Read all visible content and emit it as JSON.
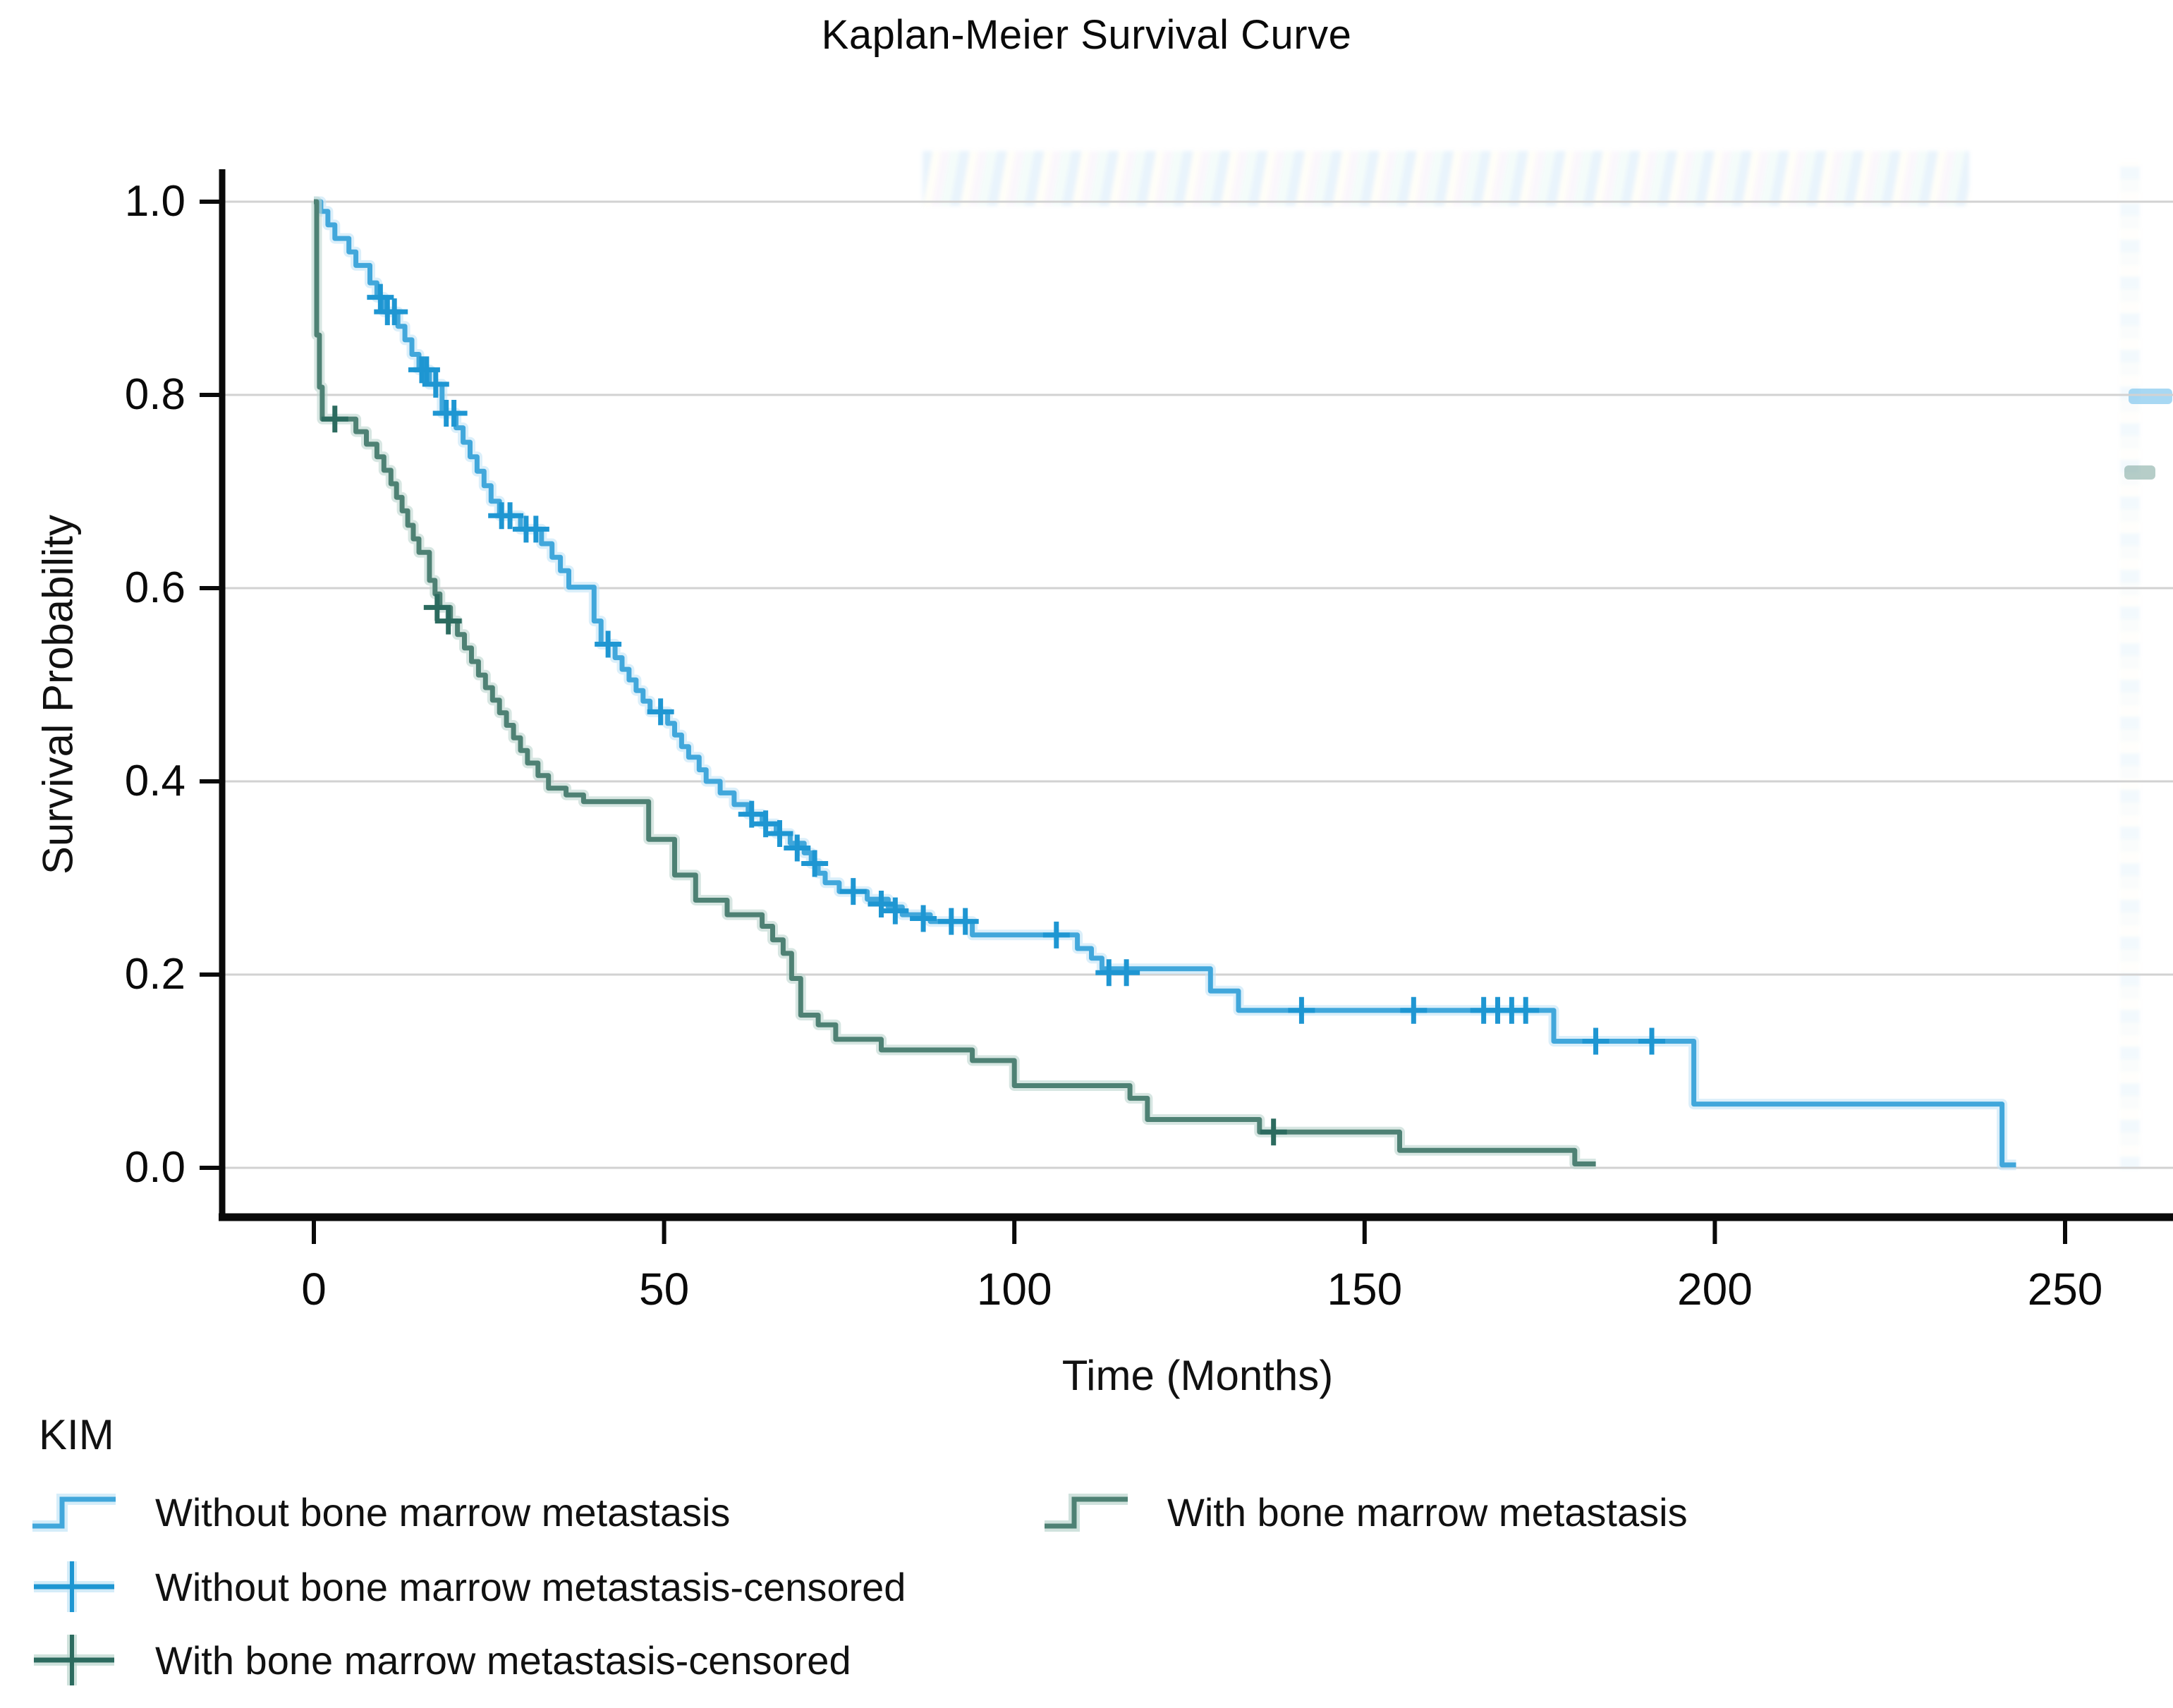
{
  "chart_data": {
    "type": "line",
    "subtype": "kaplan-meier-step",
    "title": "Kaplan-Meier Survival Curve",
    "xlabel": "Time (Months)",
    "ylabel": "Survival Probability",
    "x_ticks": [
      0,
      50,
      100,
      150,
      200,
      250
    ],
    "y_ticks": [
      0.0,
      0.2,
      0.4,
      0.6,
      0.8,
      1.0
    ],
    "xlim": [
      0,
      265
    ],
    "ylim": [
      0.0,
      1.05
    ],
    "grid": "horizontal",
    "legend_position": "bottom-left",
    "colors": {
      "grid": "#d2d2d2",
      "axis": "#0a0a0a",
      "text": "#0a0a0a",
      "series1_line": "#41a7db",
      "series1_halo": "#c3e5f6",
      "series1_censor": "#1e96d2",
      "series2_line": "#4e8174",
      "series2_halo": "#bcd6ce",
      "series2_censor": "#2c6b5f"
    },
    "series": [
      {
        "name": "Without bone marrow metastasis",
        "censored_name": "Without bone marrow metastasis-censored",
        "steps": [
          [
            0,
            1.0
          ],
          [
            1,
            0.99
          ],
          [
            2,
            0.976
          ],
          [
            3,
            0.962
          ],
          [
            5,
            0.948
          ],
          [
            6,
            0.934
          ],
          [
            8,
            0.916
          ],
          [
            9,
            0.901
          ],
          [
            10,
            0.886
          ],
          [
            12,
            0.871
          ],
          [
            13,
            0.857
          ],
          [
            14,
            0.842
          ],
          [
            15,
            0.826
          ],
          [
            16.5,
            0.811
          ],
          [
            18.3,
            0.781
          ],
          [
            20.3,
            0.766
          ],
          [
            21.3,
            0.751
          ],
          [
            22.3,
            0.736
          ],
          [
            23.3,
            0.721
          ],
          [
            24.3,
            0.706
          ],
          [
            25.3,
            0.69
          ],
          [
            26.5,
            0.675
          ],
          [
            29.5,
            0.661
          ],
          [
            32.5,
            0.646
          ],
          [
            34,
            0.632
          ],
          [
            35.2,
            0.618
          ],
          [
            36.4,
            0.601
          ],
          [
            40,
            0.566
          ],
          [
            41,
            0.542
          ],
          [
            43,
            0.528
          ],
          [
            44,
            0.516
          ],
          [
            45,
            0.505
          ],
          [
            46,
            0.494
          ],
          [
            47,
            0.483
          ],
          [
            48,
            0.472
          ],
          [
            50.5,
            0.46
          ],
          [
            51.5,
            0.448
          ],
          [
            52.5,
            0.436
          ],
          [
            53.5,
            0.425
          ],
          [
            55,
            0.412
          ],
          [
            56,
            0.4
          ],
          [
            58,
            0.388
          ],
          [
            60,
            0.376
          ],
          [
            62,
            0.366
          ],
          [
            64,
            0.356
          ],
          [
            66,
            0.346
          ],
          [
            68,
            0.336
          ],
          [
            70,
            0.326
          ],
          [
            71,
            0.315
          ],
          [
            72,
            0.305
          ],
          [
            73,
            0.295
          ],
          [
            75,
            0.286
          ],
          [
            79,
            0.278
          ],
          [
            82,
            0.27
          ],
          [
            84,
            0.262
          ],
          [
            88,
            0.255
          ],
          [
            94,
            0.241
          ],
          [
            109,
            0.227
          ],
          [
            111,
            0.217
          ],
          [
            112.5,
            0.206
          ],
          [
            128,
            0.183
          ],
          [
            132,
            0.163
          ],
          [
            177,
            0.131
          ],
          [
            197,
            0.066
          ],
          [
            241,
            0.003
          ],
          [
            243,
            0.003
          ]
        ],
        "censored": [
          [
            9.5,
            0.901
          ],
          [
            10.5,
            0.886
          ],
          [
            11.5,
            0.886
          ],
          [
            15.4,
            0.826
          ],
          [
            16.1,
            0.826
          ],
          [
            17.4,
            0.811
          ],
          [
            18.9,
            0.781
          ],
          [
            20,
            0.781
          ],
          [
            26.8,
            0.675
          ],
          [
            28,
            0.675
          ],
          [
            30.3,
            0.661
          ],
          [
            31.7,
            0.661
          ],
          [
            42,
            0.542
          ],
          [
            49.5,
            0.472
          ],
          [
            62.5,
            0.366
          ],
          [
            64.5,
            0.356
          ],
          [
            66.5,
            0.346
          ],
          [
            69,
            0.331
          ],
          [
            71.5,
            0.315
          ],
          [
            77,
            0.286
          ],
          [
            81,
            0.273
          ],
          [
            83,
            0.266
          ],
          [
            87,
            0.258
          ],
          [
            91,
            0.255
          ],
          [
            93,
            0.255
          ],
          [
            106,
            0.241
          ],
          [
            113.5,
            0.202
          ],
          [
            116,
            0.202
          ],
          [
            141,
            0.163
          ],
          [
            157,
            0.163
          ],
          [
            167,
            0.163
          ],
          [
            169,
            0.163
          ],
          [
            171,
            0.163
          ],
          [
            173,
            0.163
          ],
          [
            183,
            0.131
          ],
          [
            191,
            0.131
          ]
        ]
      },
      {
        "name": "With bone marrow metastasis",
        "censored_name": "With bone marrow metastasis-censored",
        "steps": [
          [
            0,
            1.0
          ],
          [
            0.4,
            0.862
          ],
          [
            0.8,
            0.808
          ],
          [
            1.2,
            0.775
          ],
          [
            6,
            0.762
          ],
          [
            7.5,
            0.749
          ],
          [
            9,
            0.736
          ],
          [
            10,
            0.722
          ],
          [
            11,
            0.708
          ],
          [
            11.8,
            0.694
          ],
          [
            12.6,
            0.68
          ],
          [
            13.4,
            0.665
          ],
          [
            14.2,
            0.651
          ],
          [
            15,
            0.637
          ],
          [
            16.5,
            0.608
          ],
          [
            17.3,
            0.594
          ],
          [
            18,
            0.58
          ],
          [
            19.5,
            0.566
          ],
          [
            20.5,
            0.552
          ],
          [
            21.5,
            0.538
          ],
          [
            22.5,
            0.524
          ],
          [
            23.5,
            0.51
          ],
          [
            24.5,
            0.497
          ],
          [
            25.5,
            0.484
          ],
          [
            26.5,
            0.471
          ],
          [
            27.5,
            0.458
          ],
          [
            28.5,
            0.445
          ],
          [
            29.5,
            0.432
          ],
          [
            30.5,
            0.419
          ],
          [
            32,
            0.406
          ],
          [
            33.5,
            0.393
          ],
          [
            36,
            0.386
          ],
          [
            38.5,
            0.379
          ],
          [
            47.8,
            0.34
          ],
          [
            51.5,
            0.303
          ],
          [
            54.5,
            0.277
          ],
          [
            59,
            0.262
          ],
          [
            64,
            0.25
          ],
          [
            65.5,
            0.236
          ],
          [
            67,
            0.222
          ],
          [
            68.2,
            0.196
          ],
          [
            69.5,
            0.158
          ],
          [
            72,
            0.148
          ],
          [
            74.5,
            0.133
          ],
          [
            81,
            0.122
          ],
          [
            94,
            0.111
          ],
          [
            100,
            0.085
          ],
          [
            116.5,
            0.072
          ],
          [
            119,
            0.05
          ],
          [
            135,
            0.037
          ],
          [
            155,
            0.018
          ],
          [
            180,
            0.004
          ],
          [
            183,
            0.004
          ]
        ],
        "censored": [
          [
            3,
            0.775
          ],
          [
            17.6,
            0.58
          ],
          [
            19.2,
            0.566
          ],
          [
            137,
            0.037
          ]
        ]
      }
    ],
    "legend": {
      "title": "KIM",
      "entries": [
        {
          "marker": "step",
          "series": 0,
          "label": "Without bone marrow metastasis",
          "col": 0,
          "row": 0
        },
        {
          "marker": "step",
          "series": 1,
          "label": "With bone marrow metastasis",
          "col": 1,
          "row": 0
        },
        {
          "marker": "plus",
          "series": 0,
          "label": "Without bone marrow metastasis-censored",
          "col": 0,
          "row": 1
        },
        {
          "marker": "plus",
          "series": 1,
          "label": "With bone marrow metastasis-censored",
          "col": 0,
          "row": 2
        }
      ]
    }
  }
}
